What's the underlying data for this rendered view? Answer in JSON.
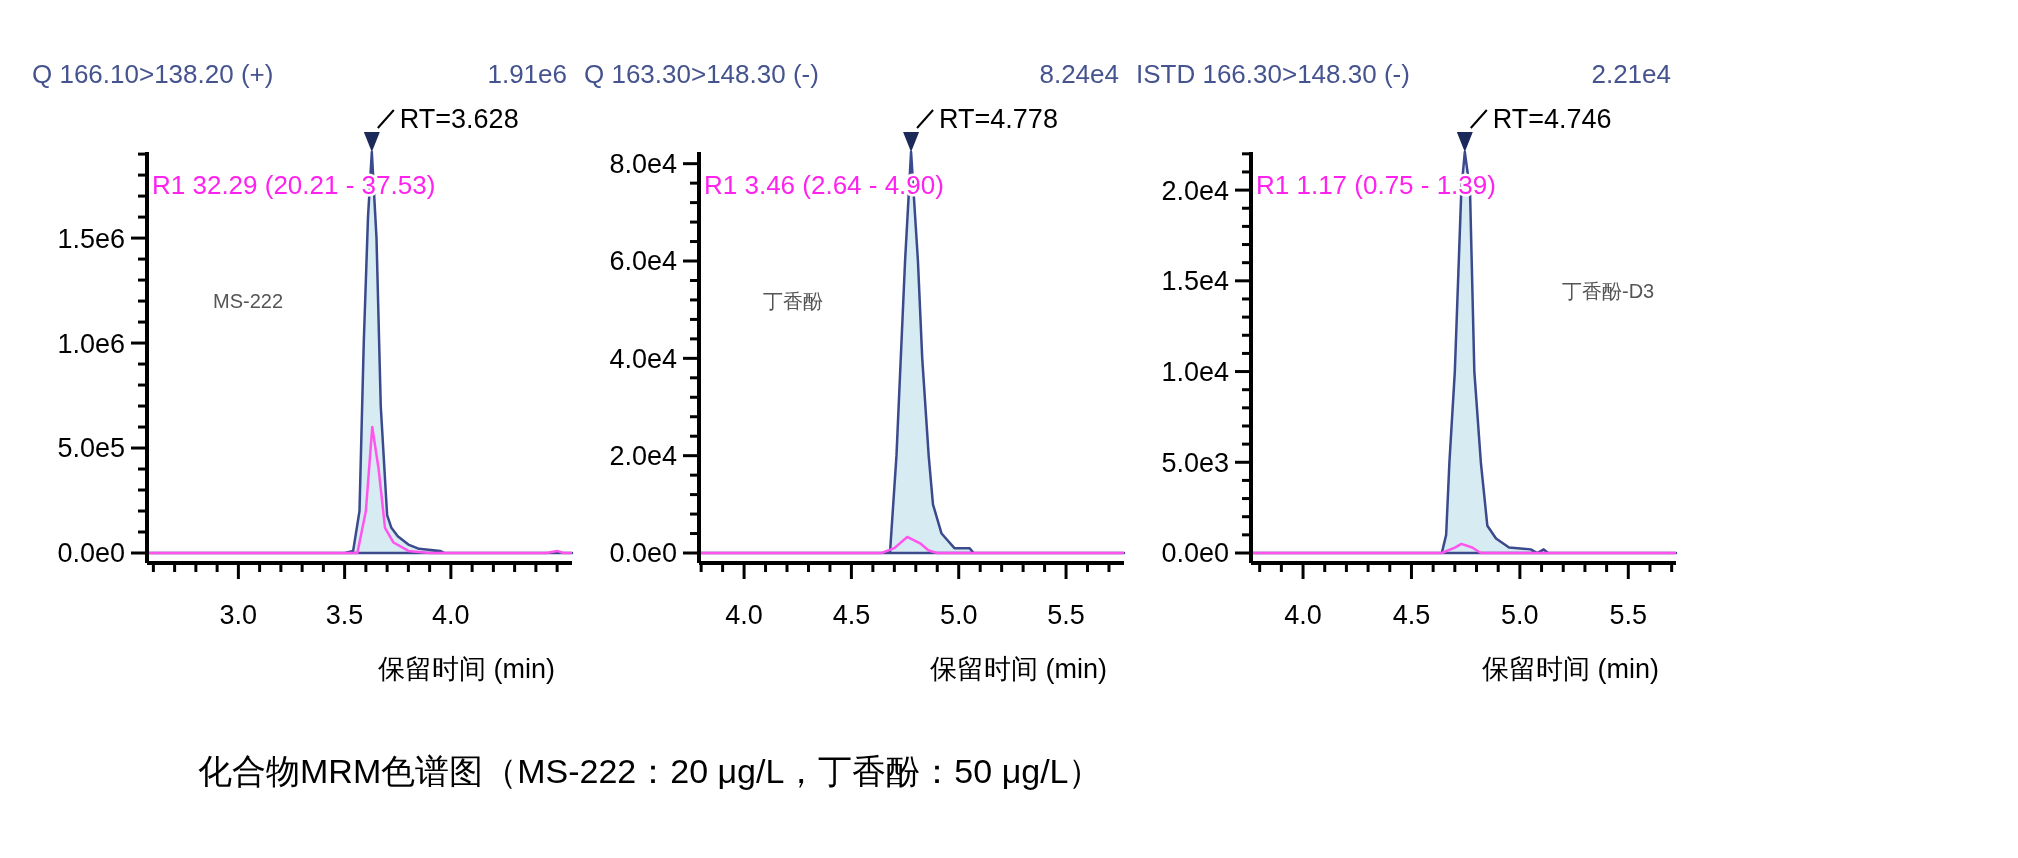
{
  "chart_data": [
    {
      "type": "line",
      "title": "Q 166.10>138.20 (+)",
      "subtitle": "1.91e6",
      "xlabel": "保留时间 (min)",
      "annotations": [
        {
          "text": "RT=3.628",
          "x": 3.628,
          "y": 1910000
        },
        "R1 32.29 (20.21 - 37.53)",
        "MS-222"
      ],
      "xlim": [
        2.57,
        4.57
      ],
      "ylim": [
        0,
        1910000
      ],
      "xticks": [
        {
          "value": 2.6,
          "label": null
        },
        {
          "value": 2.7,
          "label": null
        },
        {
          "value": 2.8,
          "label": null
        },
        {
          "value": 2.9,
          "label": null
        },
        {
          "value": 3,
          "label": "3.0"
        },
        {
          "value": 3.1,
          "label": null
        },
        {
          "value": 3.2,
          "label": null
        },
        {
          "value": 3.3,
          "label": null
        },
        {
          "value": 3.4,
          "label": null
        },
        {
          "value": 3.5,
          "label": "3.5"
        },
        {
          "value": 3.6,
          "label": null
        },
        {
          "value": 3.7,
          "label": null
        },
        {
          "value": 3.8,
          "label": null
        },
        {
          "value": 3.9,
          "label": null
        },
        {
          "value": 4,
          "label": "4.0"
        },
        {
          "value": 4.1,
          "label": null
        },
        {
          "value": 4.2,
          "label": null
        },
        {
          "value": 4.3,
          "label": null
        },
        {
          "value": 4.4,
          "label": null
        },
        {
          "value": 4.5,
          "label": null
        }
      ],
      "yticks": [
        {
          "value": 0,
          "label": "0.0e0"
        },
        {
          "value": 100000,
          "label": null
        },
        {
          "value": 200000,
          "label": null
        },
        {
          "value": 300000,
          "label": null
        },
        {
          "value": 400000,
          "label": null
        },
        {
          "value": 500000,
          "label": "5.0e5"
        },
        {
          "value": 600000,
          "label": null
        },
        {
          "value": 700000,
          "label": null
        },
        {
          "value": 800000,
          "label": null
        },
        {
          "value": 900000,
          "label": null
        },
        {
          "value": 1000000,
          "label": "1.0e6"
        },
        {
          "value": 1100000,
          "label": null
        },
        {
          "value": 1200000,
          "label": null
        },
        {
          "value": 1300000,
          "label": null
        },
        {
          "value": 1400000,
          "label": null
        },
        {
          "value": 1500000,
          "label": "1.5e6"
        },
        {
          "value": 1600000,
          "label": null
        },
        {
          "value": 1700000,
          "label": null
        },
        {
          "value": 1800000,
          "label": null
        },
        {
          "value": 1900000,
          "label": null
        }
      ],
      "series": [
        {
          "type": "area",
          "color": "#3b4a8c",
          "x": [
            2.57,
            3.5,
            3.54,
            3.57,
            3.59,
            3.61,
            3.628,
            3.65,
            3.67,
            3.7,
            3.72,
            3.75,
            3.8,
            3.85,
            3.95,
            3.97,
            4.57
          ],
          "values": [
            0,
            0,
            10000,
            200000,
            1000000,
            1600000,
            1910000,
            1500000,
            700000,
            180000,
            120000,
            80000,
            40000,
            20000,
            10000,
            0,
            0
          ]
        },
        {
          "type": "line",
          "color": "#ff55ee",
          "x": [
            2.57,
            3.56,
            3.6,
            3.63,
            3.66,
            3.69,
            3.73,
            3.8,
            3.9,
            4.45,
            4.5,
            4.53,
            4.57
          ],
          "values": [
            0,
            0,
            200000,
            600000,
            400000,
            120000,
            50000,
            10000,
            0,
            0,
            10000,
            0,
            0
          ]
        }
      ]
    },
    {
      "type": "line",
      "title": "Q 163.30>148.30 (-)",
      "subtitle": "8.24e4",
      "xlabel": "保留时间 (min)",
      "annotations": [
        {
          "text": "RT=4.778",
          "x": 4.778,
          "y": 82400
        },
        "R1 3.46 (2.64 - 4.90)",
        "丁香酚"
      ],
      "xlim": [
        3.79,
        5.77
      ],
      "ylim": [
        0,
        82400
      ],
      "xticks": [
        {
          "value": 3.8,
          "label": null
        },
        {
          "value": 3.9,
          "label": null
        },
        {
          "value": 4,
          "label": "4.0"
        },
        {
          "value": 4.1,
          "label": null
        },
        {
          "value": 4.2,
          "label": null
        },
        {
          "value": 4.3,
          "label": null
        },
        {
          "value": 4.4,
          "label": null
        },
        {
          "value": 4.5,
          "label": "4.5"
        },
        {
          "value": 4.6,
          "label": null
        },
        {
          "value": 4.7,
          "label": null
        },
        {
          "value": 4.8,
          "label": null
        },
        {
          "value": 4.9,
          "label": null
        },
        {
          "value": 5,
          "label": "5.0"
        },
        {
          "value": 5.1,
          "label": null
        },
        {
          "value": 5.2,
          "label": null
        },
        {
          "value": 5.3,
          "label": null
        },
        {
          "value": 5.4,
          "label": null
        },
        {
          "value": 5.5,
          "label": "5.5"
        },
        {
          "value": 5.6,
          "label": null
        },
        {
          "value": 5.7,
          "label": null
        }
      ],
      "yticks": [
        {
          "value": 0,
          "label": "0.0e0"
        },
        {
          "value": 4000,
          "label": null
        },
        {
          "value": 8000,
          "label": null
        },
        {
          "value": 12000,
          "label": null
        },
        {
          "value": 16000,
          "label": null
        },
        {
          "value": 20000,
          "label": "2.0e4"
        },
        {
          "value": 24000,
          "label": null
        },
        {
          "value": 28000,
          "label": null
        },
        {
          "value": 32000,
          "label": null
        },
        {
          "value": 36000,
          "label": null
        },
        {
          "value": 40000,
          "label": "4.0e4"
        },
        {
          "value": 44000,
          "label": null
        },
        {
          "value": 48000,
          "label": null
        },
        {
          "value": 52000,
          "label": null
        },
        {
          "value": 56000,
          "label": null
        },
        {
          "value": 60000,
          "label": "6.0e4"
        },
        {
          "value": 64000,
          "label": null
        },
        {
          "value": 68000,
          "label": null
        },
        {
          "value": 72000,
          "label": null
        },
        {
          "value": 76000,
          "label": null
        },
        {
          "value": 80000,
          "label": "8.0e4"
        }
      ],
      "series": [
        {
          "type": "area",
          "color": "#3b4a8c",
          "x": [
            3.79,
            4.66,
            4.68,
            4.71,
            4.75,
            4.778,
            4.81,
            4.83,
            4.86,
            4.88,
            4.92,
            4.98,
            5.05,
            5.07,
            5.77
          ],
          "values": [
            0,
            0,
            200,
            20000,
            60000,
            82400,
            60000,
            40000,
            20000,
            10000,
            4000,
            1000,
            1000,
            0,
            0
          ]
        },
        {
          "type": "line",
          "color": "#ff55ee",
          "x": [
            3.79,
            4.64,
            4.7,
            4.76,
            4.82,
            4.86,
            4.9,
            5.77
          ],
          "values": [
            0,
            0,
            1000,
            3300,
            2000,
            500,
            0,
            0
          ]
        }
      ]
    },
    {
      "type": "line",
      "title": "ISTD 166.30>148.30 (-)",
      "subtitle": "2.21e4",
      "xlabel": "保留时间 (min)",
      "annotations": [
        {
          "text": "RT=4.746",
          "x": 4.746,
          "y": 22100
        },
        "R1 1.17 (0.75 - 1.39)",
        "丁香酚-D3"
      ],
      "xlim": [
        3.76,
        5.72
      ],
      "ylim": [
        0,
        22100
      ],
      "xticks": [
        {
          "value": 3.8,
          "label": null
        },
        {
          "value": 3.9,
          "label": null
        },
        {
          "value": 4,
          "label": "4.0"
        },
        {
          "value": 4.1,
          "label": null
        },
        {
          "value": 4.2,
          "label": null
        },
        {
          "value": 4.3,
          "label": null
        },
        {
          "value": 4.4,
          "label": null
        },
        {
          "value": 4.5,
          "label": "4.5"
        },
        {
          "value": 4.6,
          "label": null
        },
        {
          "value": 4.7,
          "label": null
        },
        {
          "value": 4.8,
          "label": null
        },
        {
          "value": 4.9,
          "label": null
        },
        {
          "value": 5,
          "label": "5.0"
        },
        {
          "value": 5.1,
          "label": null
        },
        {
          "value": 5.2,
          "label": null
        },
        {
          "value": 5.3,
          "label": null
        },
        {
          "value": 5.4,
          "label": null
        },
        {
          "value": 5.5,
          "label": "5.5"
        },
        {
          "value": 5.6,
          "label": null
        },
        {
          "value": 5.7,
          "label": null
        }
      ],
      "yticks": [
        {
          "value": 0,
          "label": "0.0e0"
        },
        {
          "value": 1000,
          "label": null
        },
        {
          "value": 2000,
          "label": null
        },
        {
          "value": 3000,
          "label": null
        },
        {
          "value": 4000,
          "label": null
        },
        {
          "value": 5000,
          "label": "5.0e3"
        },
        {
          "value": 6000,
          "label": null
        },
        {
          "value": 7000,
          "label": null
        },
        {
          "value": 8000,
          "label": null
        },
        {
          "value": 9000,
          "label": null
        },
        {
          "value": 10000,
          "label": "1.0e4"
        },
        {
          "value": 11000,
          "label": null
        },
        {
          "value": 12000,
          "label": null
        },
        {
          "value": 13000,
          "label": null
        },
        {
          "value": 14000,
          "label": null
        },
        {
          "value": 15000,
          "label": "1.5e4"
        },
        {
          "value": 16000,
          "label": null
        },
        {
          "value": 17000,
          "label": null
        },
        {
          "value": 18000,
          "label": null
        },
        {
          "value": 19000,
          "label": null
        },
        {
          "value": 20000,
          "label": "2.0e4"
        },
        {
          "value": 21000,
          "label": null
        },
        {
          "value": 22000,
          "label": null
        }
      ],
      "series": [
        {
          "type": "area",
          "color": "#3b4a8c",
          "x": [
            3.76,
            4.64,
            4.66,
            4.675,
            4.7,
            4.73,
            4.746,
            4.77,
            4.79,
            4.82,
            4.85,
            4.89,
            4.95,
            5.05,
            5.08,
            5.11,
            5.13,
            5.72
          ],
          "values": [
            0,
            0,
            1000,
            5000,
            10000,
            20000,
            22100,
            20000,
            10000,
            5000,
            1500,
            800,
            300,
            200,
            0,
            200,
            0,
            0
          ]
        },
        {
          "type": "line",
          "color": "#ff55ee",
          "x": [
            3.76,
            4.64,
            4.7,
            4.73,
            4.78,
            4.82,
            5.72
          ],
          "values": [
            0,
            0,
            300,
            500,
            300,
            0,
            0
          ]
        }
      ]
    },
    {
      "type": "other",
      "title": "化合物MRM色谱图（MS-222：20 μg/L，丁香酚：50 μg/L）"
    }
  ]
}
